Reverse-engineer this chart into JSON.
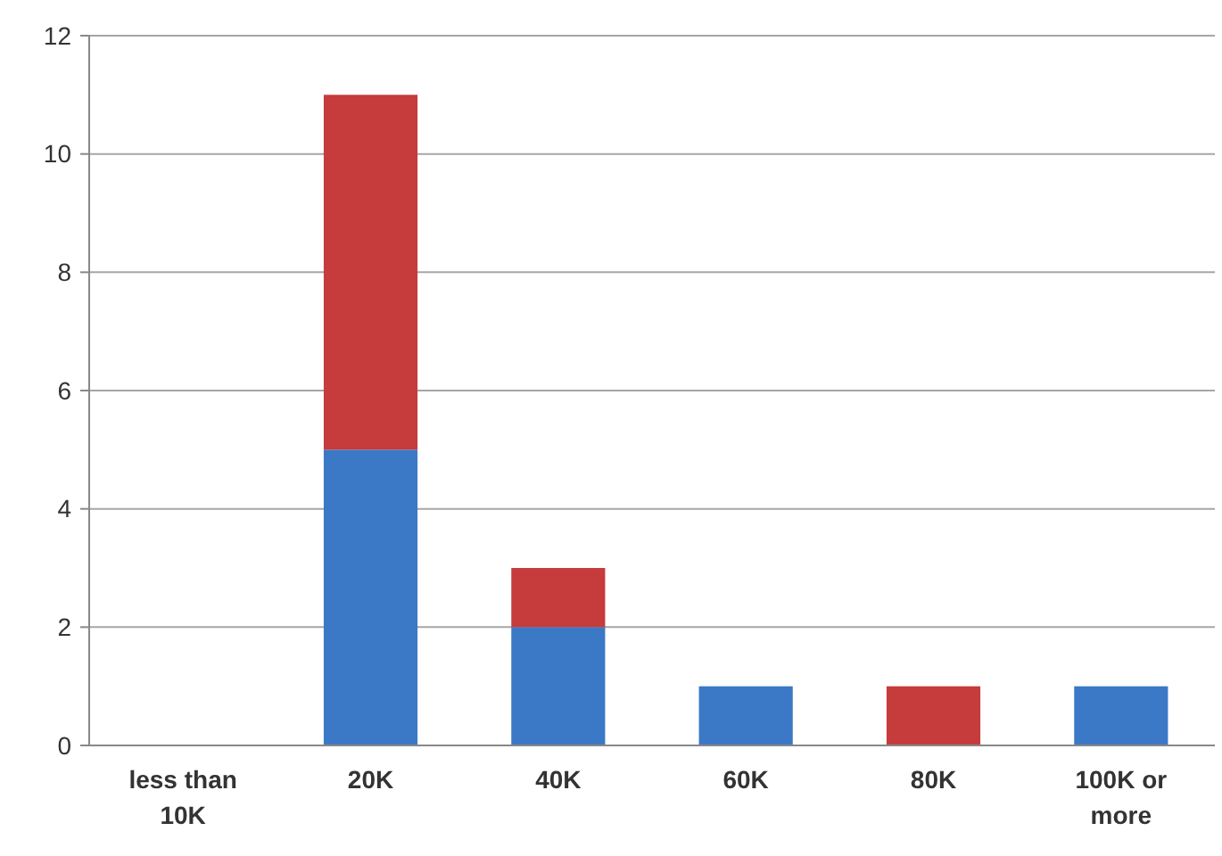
{
  "chart_data": {
    "type": "bar",
    "stacked": true,
    "categories": [
      "less than 10K",
      "20K",
      "40K",
      "60K",
      "80K",
      "100K or more"
    ],
    "series": [
      {
        "color": "#3b78c6",
        "values": [
          0,
          5,
          2,
          1,
          0,
          1
        ]
      },
      {
        "color": "#c63b3b",
        "values": [
          0,
          6,
          1,
          0,
          1,
          0
        ]
      }
    ],
    "ylim": [
      0,
      12
    ],
    "yticks": [
      0,
      2,
      4,
      6,
      8,
      10,
      12
    ],
    "grid": "y"
  }
}
